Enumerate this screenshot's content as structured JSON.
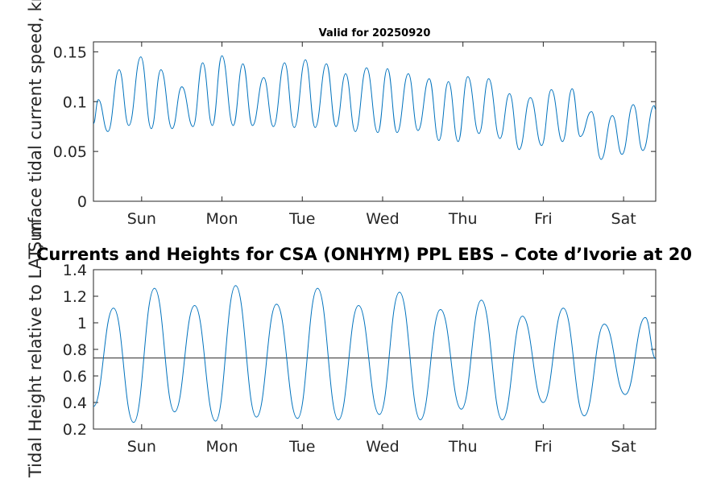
{
  "chart_data": [
    {
      "type": "line",
      "title": "Valid for 20250920",
      "xlabel": "",
      "ylabel": "Surface tidal current speed, kn",
      "ylim": [
        0,
        0.16
      ],
      "yticks": [
        0,
        0.05,
        0.1,
        0.15
      ],
      "ytick_labels": [
        "0",
        "0.05",
        "0.1",
        "0.15"
      ],
      "xlim": [
        0,
        7
      ],
      "xticks": [
        0.6,
        1.6,
        2.6,
        3.6,
        4.6,
        5.6,
        6.6
      ],
      "xtick_labels": [
        "Sun",
        "Mon",
        "Tue",
        "Wed",
        "Thu",
        "Fri",
        "Sat"
      ],
      "series": [
        {
          "name": "current speed",
          "color": "#0072BD",
          "x": [
            0,
            0.06,
            0.18,
            0.32,
            0.44,
            0.59,
            0.72,
            0.84,
            0.98,
            1.1,
            1.24,
            1.36,
            1.48,
            1.6,
            1.74,
            1.86,
            1.98,
            2.12,
            2.24,
            2.38,
            2.5,
            2.64,
            2.76,
            2.9,
            3.02,
            3.14,
            3.26,
            3.4,
            3.54,
            3.66,
            3.78,
            3.92,
            4.04,
            4.18,
            4.3,
            4.42,
            4.54,
            4.66,
            4.8,
            4.92,
            5.06,
            5.18,
            5.3,
            5.44,
            5.58,
            5.7,
            5.84,
            5.96,
            6.06,
            6.2,
            6.32,
            6.46,
            6.58,
            6.72,
            6.84,
            6.98,
            7.0
          ],
          "y": [
            0.078,
            0.102,
            0.07,
            0.132,
            0.076,
            0.145,
            0.073,
            0.132,
            0.073,
            0.115,
            0.075,
            0.139,
            0.076,
            0.146,
            0.076,
            0.138,
            0.076,
            0.124,
            0.075,
            0.139,
            0.074,
            0.142,
            0.074,
            0.138,
            0.075,
            0.128,
            0.07,
            0.134,
            0.069,
            0.133,
            0.069,
            0.128,
            0.071,
            0.123,
            0.061,
            0.12,
            0.06,
            0.125,
            0.068,
            0.123,
            0.063,
            0.108,
            0.052,
            0.104,
            0.056,
            0.112,
            0.06,
            0.113,
            0.065,
            0.09,
            0.042,
            0.086,
            0.047,
            0.097,
            0.051,
            0.096,
            0.092
          ]
        }
      ]
    },
    {
      "type": "line",
      "title": "Currents and Heights for CSA (ONHYM) PPL EBS  – Cote d’Ivorie at 20",
      "xlabel": "",
      "ylabel": "Tidal Height relative to LAT, m",
      "ylim": [
        0.2,
        1.4
      ],
      "yticks": [
        0.2,
        0.4,
        0.6,
        0.8,
        1,
        1.2,
        1.4
      ],
      "ytick_labels": [
        "0.2",
        "0.4",
        "0.6",
        "0.8",
        "1",
        "1.2",
        "1.4"
      ],
      "xlim": [
        0,
        7
      ],
      "xticks": [
        0.6,
        1.6,
        2.6,
        3.6,
        4.6,
        5.6,
        6.6
      ],
      "xtick_labels": [
        "Sun",
        "Mon",
        "Tue",
        "Wed",
        "Thu",
        "Fri",
        "Sat"
      ],
      "reference_line": 0.735,
      "series": [
        {
          "name": "tidal height",
          "color": "#0072BD",
          "x": [
            0,
            0.25,
            0.5,
            0.76,
            1.01,
            1.26,
            1.52,
            1.77,
            2.03,
            2.28,
            2.54,
            2.79,
            3.05,
            3.3,
            3.56,
            3.81,
            4.07,
            4.32,
            4.58,
            4.83,
            5.09,
            5.34,
            5.6,
            5.85,
            6.11,
            6.36,
            6.62,
            6.87,
            7.0
          ],
          "y": [
            0.37,
            1.11,
            0.25,
            1.26,
            0.33,
            1.13,
            0.26,
            1.28,
            0.29,
            1.14,
            0.28,
            1.26,
            0.27,
            1.13,
            0.31,
            1.23,
            0.27,
            1.1,
            0.35,
            1.17,
            0.27,
            1.05,
            0.4,
            1.11,
            0.3,
            0.99,
            0.46,
            1.04,
            0.73
          ]
        }
      ]
    }
  ]
}
